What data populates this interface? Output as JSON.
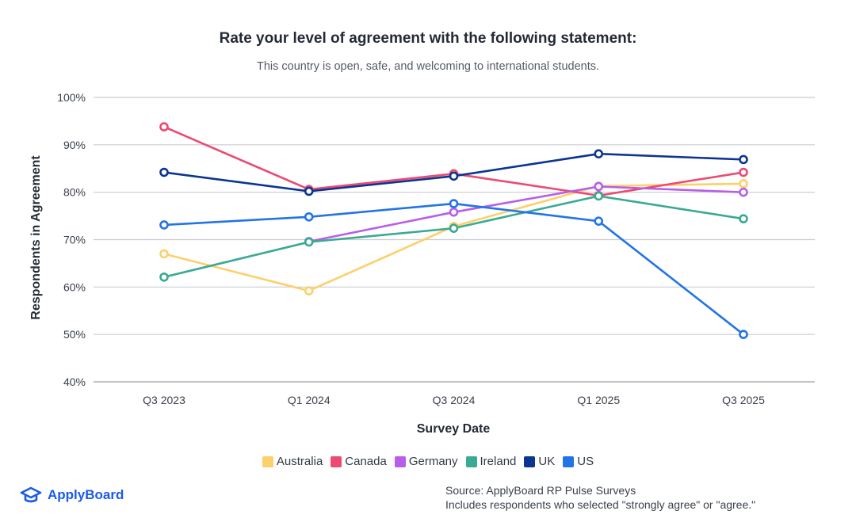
{
  "chart_data": {
    "type": "line",
    "title": "Rate your level of agreement with the following statement:",
    "subtitle": "This country is open, safe, and welcoming to international students.",
    "xlabel": "Survey Date",
    "ylabel": "Respondents in Agreement",
    "categories": [
      "Q3 2023",
      "Q1 2024",
      "Q3 2024",
      "Q1 2025",
      "Q3 2025"
    ],
    "ylim": [
      40,
      100
    ],
    "yticks": [
      40,
      50,
      60,
      70,
      80,
      90,
      100
    ],
    "ytick_labels": [
      "40%",
      "50%",
      "60%",
      "70%",
      "80%",
      "90%",
      "100%"
    ],
    "grid": true,
    "legend_position": "bottom",
    "series": [
      {
        "name": "Australia",
        "color": "#fcd06a",
        "values": [
          67,
          59.2,
          72.8,
          81.3,
          81.8
        ]
      },
      {
        "name": "Canada",
        "color": "#ec4a73",
        "values": [
          93.8,
          80.6,
          83.9,
          79.3,
          84.2
        ]
      },
      {
        "name": "Germany",
        "color": "#b85ee8",
        "values": [
          null,
          69.6,
          75.8,
          81.2,
          80
        ]
      },
      {
        "name": "Ireland",
        "color": "#3aaa92",
        "values": [
          62.1,
          69.5,
          72.4,
          79.2,
          74.4
        ]
      },
      {
        "name": "UK",
        "color": "#0c3592",
        "values": [
          84.2,
          80.2,
          83.4,
          88.1,
          86.9
        ]
      },
      {
        "name": "US",
        "color": "#2374e6",
        "values": [
          73.1,
          74.8,
          77.6,
          73.9,
          50
        ]
      }
    ]
  },
  "brand": {
    "name": "ApplyBoard",
    "icon": "graduation-cap-icon",
    "color": "#1a5be8"
  },
  "source": {
    "line1": "Source: ApplyBoard RP Pulse Surveys",
    "line2": "Includes respondents who selected \"strongly agree\" or \"agree.\""
  }
}
